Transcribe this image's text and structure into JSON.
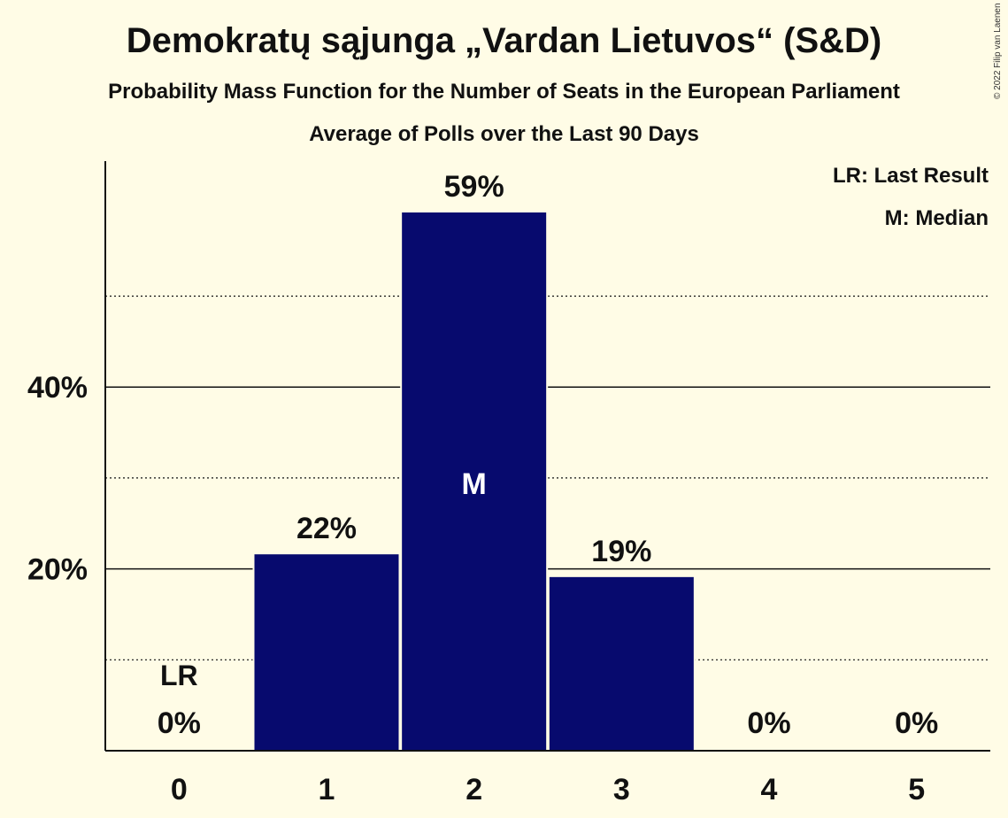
{
  "chart_data": {
    "type": "bar",
    "title": "Demokratų sąjunga „Vardan Lietuvos“ (S&D)",
    "subtitle": "Probability Mass Function for the Number of Seats in the European Parliament",
    "subtitle2": "Average of Polls over the Last 90 Days",
    "copyright": "© 2022 Filip van Laenen",
    "categories": [
      "0",
      "1",
      "2",
      "3",
      "4",
      "5"
    ],
    "values": [
      0,
      21.6,
      59.2,
      19.1,
      0,
      0
    ],
    "value_labels": [
      "0%",
      "22%",
      "59%",
      "19%",
      "0%",
      "0%"
    ],
    "ylim": [
      0,
      65
    ],
    "yticks": [
      20,
      40
    ],
    "ytick_labels": [
      "20%",
      "40%"
    ],
    "minor_gridlines": [
      10,
      30,
      50
    ],
    "xlabel": "",
    "ylabel": "",
    "last_result": {
      "category": "0",
      "label": "LR"
    },
    "median": {
      "category": "2",
      "label": "M"
    },
    "legend": [
      "LR: Last Result",
      "M: Median"
    ],
    "colors": {
      "bar": "#070A6E",
      "background": "#FFFCE6",
      "text": "#111111",
      "median_text": "#FFFFFF"
    }
  }
}
